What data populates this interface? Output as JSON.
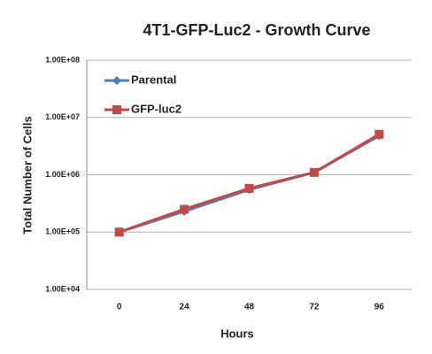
{
  "chart_data": {
    "type": "line",
    "title": "4T1-GFP-Luc2 - Growth Curve",
    "x_label": "Hours",
    "y_label": "Total Number of Cells",
    "categories": [
      "0",
      "24",
      "48",
      "72",
      "96"
    ],
    "series": [
      {
        "name": "Parental",
        "color": "#4a7ebb",
        "marker": "diamond",
        "values": [
          100000,
          230000,
          550000,
          1100000,
          4800000
        ]
      },
      {
        "name": "GFP-luc2",
        "color": "#be4b48",
        "marker": "square",
        "values": [
          100000,
          250000,
          580000,
          1100000,
          5100000
        ]
      }
    ],
    "log_y": true,
    "ylim": [
      10000,
      100000000
    ],
    "yticks": [
      {
        "value": 10000,
        "label": "1.00E+04"
      },
      {
        "value": 100000,
        "label": "1.00E+05"
      },
      {
        "value": 1000000,
        "label": "1.00E+06"
      },
      {
        "value": 10000000,
        "label": "1.00E+07"
      },
      {
        "value": 100000000,
        "label": "1.00E+08"
      }
    ],
    "grid": true,
    "legend": "upper left"
  }
}
